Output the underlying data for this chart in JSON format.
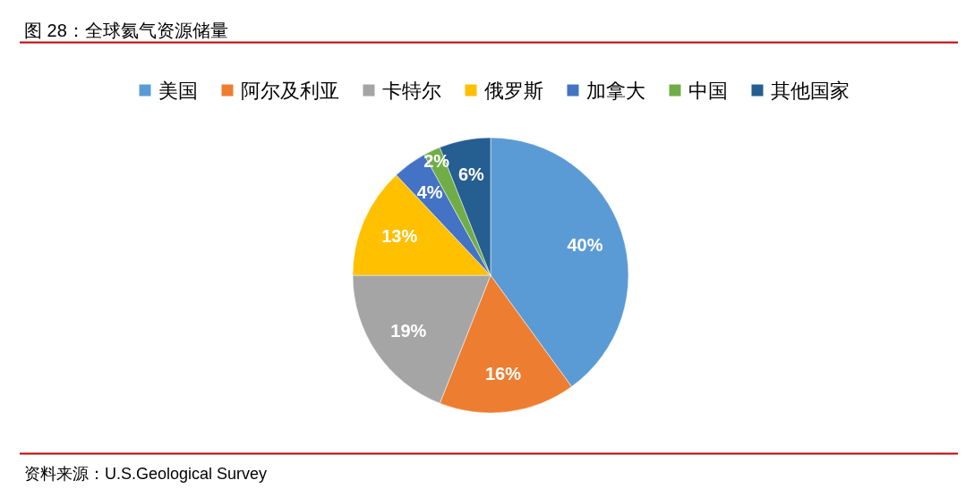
{
  "chart_data": {
    "type": "pie",
    "title": "图 28：全球氦气资源储量",
    "categories": [
      "美国",
      "阿尔及利亚",
      "卡特尔",
      "俄罗斯",
      "加拿大",
      "中国",
      "其他国家"
    ],
    "values": [
      40,
      16,
      19,
      13,
      4,
      2,
      6
    ],
    "value_labels": [
      "40%",
      "16%",
      "19%",
      "13%",
      "4%",
      "2%",
      "6%"
    ],
    "colors": [
      "#5b9bd5",
      "#ed7d31",
      "#a5a5a5",
      "#ffc000",
      "#4472c4",
      "#70ad47",
      "#255e91"
    ],
    "legend": "top",
    "annotations": [
      "资料来源：U.S.Geological Survey"
    ]
  }
}
